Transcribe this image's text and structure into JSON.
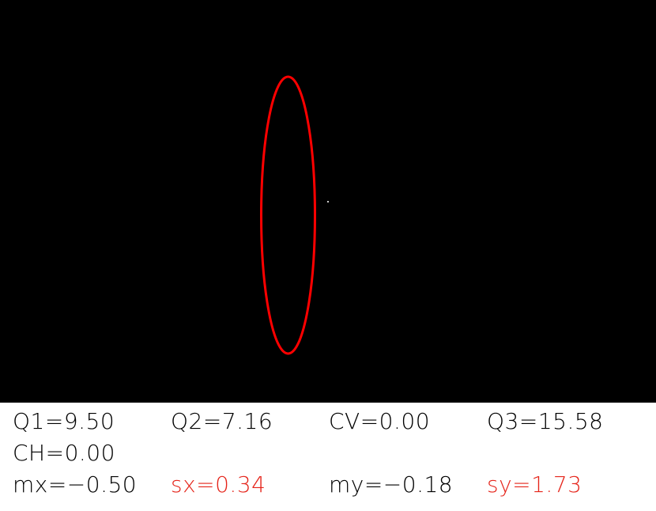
{
  "canvas": {
    "background_color": "#000000",
    "ellipse_color": "#ff0000",
    "center_marker_color": "#cccccc"
  },
  "readouts": {
    "row1": {
      "q1": "Q1=9.50",
      "q2": "Q2=7.16",
      "cv": "CV=0.00",
      "q3": "Q3=15.58"
    },
    "row2": {
      "ch": "CH=0.00"
    },
    "row3": {
      "mx": "mx=−0.50",
      "sx": "sx=0.34",
      "my": "my=−0.18",
      "sy": "sy=1.73"
    },
    "highlight_color": "#e5241a"
  }
}
